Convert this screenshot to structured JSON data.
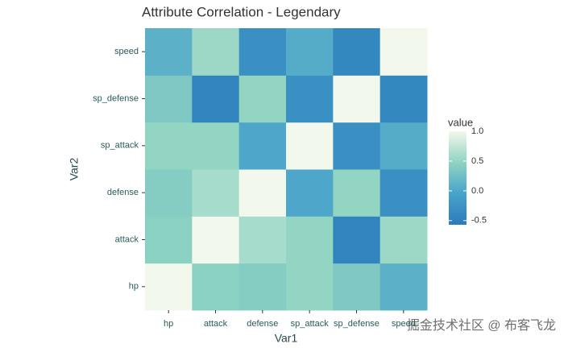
{
  "chart_data": {
    "type": "heatmap",
    "title": "Attribute Correlation - Legendary",
    "x_label": "Var1",
    "y_label": "Var2",
    "x_categories": [
      "hp",
      "attack",
      "defense",
      "sp_attack",
      "sp_defense",
      "speed"
    ],
    "y_categories": [
      "hp",
      "attack",
      "defense",
      "sp_attack",
      "sp_defense",
      "speed"
    ],
    "values": [
      [
        1,
        0.45,
        0.4,
        0.5,
        0.35,
        0.1
      ],
      [
        0.45,
        1,
        0.6,
        0.5,
        -0.45,
        0.55
      ],
      [
        0.4,
        0.6,
        1,
        0.0,
        0.5,
        -0.3
      ],
      [
        0.5,
        0.5,
        0.0,
        1,
        -0.3,
        0.05
      ],
      [
        0.35,
        -0.45,
        0.5,
        -0.3,
        1,
        -0.4
      ],
      [
        0.1,
        0.55,
        -0.3,
        0.05,
        -0.4,
        1
      ]
    ],
    "legend_title": "value",
    "colorlim": [
      -0.57,
      1.0
    ],
    "colorticks": [
      {
        "value": 1.0,
        "label": "1.0"
      },
      0.5,
      {
        "value": 0.0,
        "label": "0.0"
      },
      -0.5
    ],
    "palette": [
      "#2b7bba",
      "#48a3cb",
      "#8fd3c1",
      "#f2f8ec"
    ],
    "watermark": "掘金技术社区 @ 布客飞龙"
  }
}
